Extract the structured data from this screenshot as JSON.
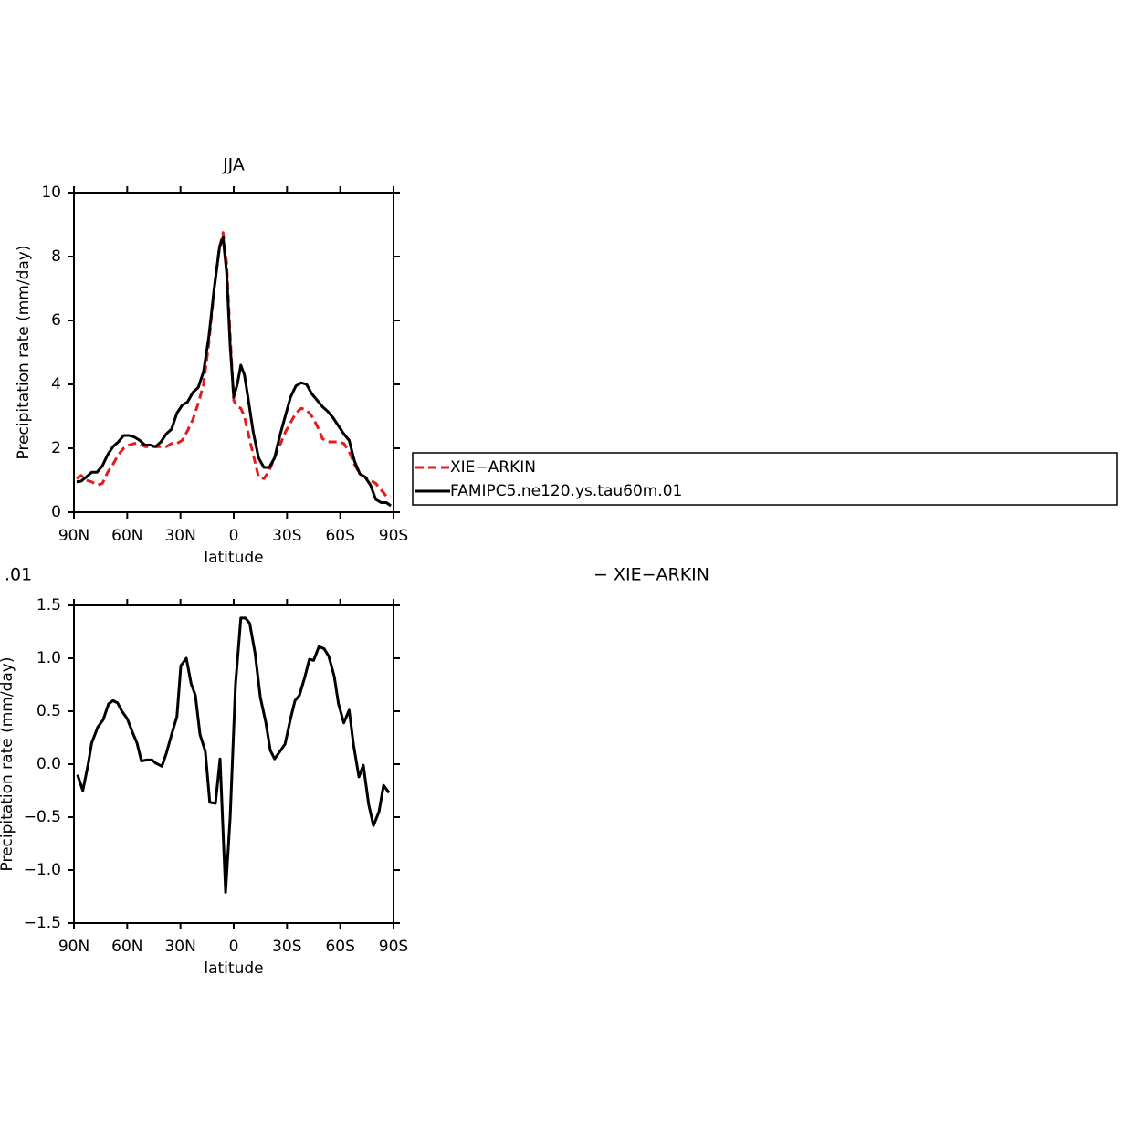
{
  "chart_data": [
    {
      "type": "line",
      "title": "JJA",
      "x_label": "latitude",
      "y_label": "Precipitation rate (mm/day)",
      "x": [
        88.5,
        86,
        83,
        80,
        77,
        74,
        71,
        68,
        65,
        62,
        59,
        56,
        53,
        50,
        47,
        44,
        41,
        38,
        35,
        32,
        29,
        26,
        23,
        20,
        17,
        14,
        11,
        8,
        6,
        4,
        2,
        0,
        -2,
        -4,
        -6,
        -8,
        -11,
        -14,
        -17,
        -20,
        -23,
        -26,
        -29,
        -32,
        -35,
        -38,
        -41,
        -44,
        -47,
        -50,
        -53,
        -56,
        -59,
        -62,
        -65,
        -68,
        -71,
        -74,
        -77,
        -80,
        -83,
        -86,
        -88.5
      ],
      "series": [
        {
          "name": "XIE−ARKIN",
          "color": "#e41a1c",
          "linestyle": "dashed",
          "values": [
            1.05,
            1.15,
            1.0,
            0.95,
            0.85,
            0.9,
            1.25,
            1.5,
            1.8,
            2.0,
            2.1,
            2.15,
            2.15,
            2.05,
            2.05,
            2.05,
            2.05,
            2.05,
            2.15,
            2.15,
            2.25,
            2.55,
            2.9,
            3.4,
            4.0,
            5.3,
            7.0,
            8.3,
            8.75,
            7.8,
            5.5,
            3.5,
            3.3,
            3.25,
            3.0,
            2.5,
            1.8,
            1.1,
            1.05,
            1.3,
            1.7,
            2.1,
            2.5,
            2.8,
            3.1,
            3.25,
            3.2,
            3.0,
            2.7,
            2.3,
            2.2,
            2.2,
            2.2,
            2.15,
            1.9,
            1.5,
            1.2,
            1.1,
            1.0,
            0.9,
            0.7,
            0.5,
            0.5
          ]
        },
        {
          "name": "FAMIPC5.ne120.ys.tau60m.01",
          "color": "#000000",
          "linestyle": "solid",
          "values": [
            0.95,
            0.97,
            1.1,
            1.25,
            1.25,
            1.45,
            1.8,
            2.05,
            2.2,
            2.4,
            2.4,
            2.35,
            2.25,
            2.1,
            2.1,
            2.05,
            2.2,
            2.45,
            2.6,
            3.1,
            3.35,
            3.45,
            3.75,
            3.9,
            4.4,
            5.5,
            7.0,
            8.3,
            8.6,
            7.5,
            5.2,
            3.6,
            4.0,
            4.6,
            4.3,
            3.6,
            2.5,
            1.7,
            1.4,
            1.4,
            1.7,
            2.4,
            3.0,
            3.6,
            3.95,
            4.05,
            4.0,
            3.7,
            3.5,
            3.3,
            3.15,
            2.95,
            2.7,
            2.45,
            2.25,
            1.6,
            1.2,
            1.1,
            0.85,
            0.4,
            0.3,
            0.3,
            0.2
          ]
        }
      ],
      "xlim": [
        90,
        -90
      ],
      "xticks": [
        {
          "value": 90,
          "label": "90N"
        },
        {
          "value": 60,
          "label": "60N"
        },
        {
          "value": 30,
          "label": "30N"
        },
        0,
        {
          "value": -30,
          "label": "30S"
        },
        {
          "value": -60,
          "label": "60S"
        },
        {
          "value": -90,
          "label": "90S"
        }
      ],
      "ylim": [
        0,
        10
      ],
      "yticks": [
        0,
        2,
        4,
        6,
        8,
        10
      ]
    },
    {
      "type": "line",
      "title_fragments": [
        ".01",
        "− XIE−ARKIN"
      ],
      "x_label": "latitude",
      "y_label": "Precipitation rate (mm/day)",
      "x": [
        88,
        85,
        82,
        80,
        76.6,
        73.5,
        70.5,
        68,
        65.5,
        63,
        60,
        57,
        54.5,
        52,
        49,
        46,
        44,
        40.5,
        38,
        35,
        32,
        29.8,
        26.7,
        24,
        21.6,
        19,
        16,
        13.5,
        10.3,
        7.7,
        4.6,
        2,
        -1,
        -4,
        -6.6,
        -9,
        -12,
        -15,
        -18,
        -20.6,
        -23,
        -26,
        -28.9,
        -32,
        -34.5,
        -37,
        -40,
        -42.6,
        -45,
        -48,
        -50.9,
        -53.5,
        -56.6,
        -59,
        -62,
        -65,
        -67.5,
        -70.5,
        -73,
        -76,
        -78.7,
        -81.8,
        -84.4,
        -87.5
      ],
      "color": "#000000",
      "values": [
        -0.1,
        -0.25,
        0.0,
        0.2,
        0.35,
        0.42,
        0.57,
        0.6,
        0.58,
        0.5,
        0.43,
        0.3,
        0.2,
        0.03,
        0.04,
        0.04,
        0.01,
        -0.02,
        0.1,
        0.28,
        0.45,
        0.93,
        1.0,
        0.76,
        0.65,
        0.28,
        0.12,
        -0.36,
        -0.37,
        0.05,
        -1.21,
        -0.5,
        0.75,
        1.38,
        1.38,
        1.33,
        1.05,
        0.63,
        0.4,
        0.13,
        0.05,
        0.12,
        0.19,
        0.43,
        0.6,
        0.65,
        0.82,
        0.99,
        0.98,
        1.11,
        1.09,
        1.02,
        0.83,
        0.57,
        0.39,
        0.51,
        0.18,
        -0.12,
        -0.01,
        -0.38,
        -0.58,
        -0.45,
        -0.2,
        -0.27
      ],
      "xlim": [
        90,
        -90
      ],
      "xticks": [
        {
          "value": 90,
          "label": "90N"
        },
        {
          "value": 60,
          "label": "60N"
        },
        {
          "value": 30,
          "label": "30N"
        },
        0,
        {
          "value": -30,
          "label": "30S"
        },
        {
          "value": -60,
          "label": "60S"
        },
        {
          "value": -90,
          "label": "90S"
        }
      ],
      "ylim": [
        -1.5,
        1.5
      ],
      "yticks": [
        {
          "value": -1.5,
          "label": "−1.5"
        },
        {
          "value": -1.0,
          "label": "−1.0"
        },
        {
          "value": -0.5,
          "label": "−0.5"
        },
        {
          "value": 0,
          "label": "0.0"
        },
        0.5,
        {
          "value": 1.0,
          "label": "1.0"
        },
        1.5
      ]
    }
  ]
}
